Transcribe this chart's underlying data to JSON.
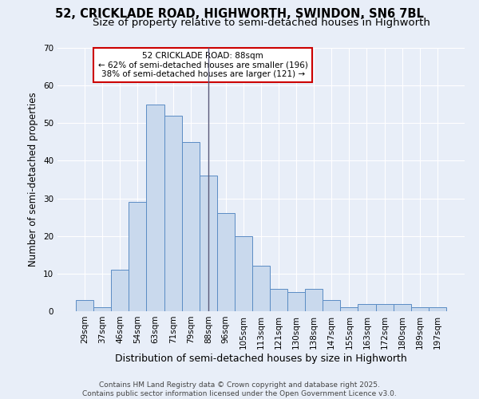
{
  "title": "52, CRICKLADE ROAD, HIGHWORTH, SWINDON, SN6 7BL",
  "subtitle": "Size of property relative to semi-detached houses in Highworth",
  "xlabel": "Distribution of semi-detached houses by size in Highworth",
  "ylabel": "Number of semi-detached properties",
  "categories": [
    "29sqm",
    "37sqm",
    "46sqm",
    "54sqm",
    "63sqm",
    "71sqm",
    "79sqm",
    "88sqm",
    "96sqm",
    "105sqm",
    "113sqm",
    "121sqm",
    "130sqm",
    "138sqm",
    "147sqm",
    "155sqm",
    "163sqm",
    "172sqm",
    "180sqm",
    "189sqm",
    "197sqm"
  ],
  "values": [
    3,
    1,
    11,
    29,
    55,
    52,
    45,
    36,
    26,
    20,
    12,
    6,
    5,
    6,
    3,
    1,
    2,
    2,
    2,
    1,
    1
  ],
  "bar_color": "#c9d9ed",
  "bar_edge_color": "#5b8cc4",
  "marker_index": 7,
  "marker_label": "52 CRICKLADE ROAD: 88sqm",
  "marker_line_color": "#5a5a7a",
  "annotation_lines": [
    "← 62% of semi-detached houses are smaller (196)",
    "38% of semi-detached houses are larger (121) →"
  ],
  "annotation_box_edge_color": "#cc0000",
  "ylim": [
    0,
    70
  ],
  "yticks": [
    0,
    10,
    20,
    30,
    40,
    50,
    60,
    70
  ],
  "background_color": "#e8eef8",
  "plot_bg_color": "#e8eef8",
  "grid_color": "#ffffff",
  "footer_lines": [
    "Contains HM Land Registry data © Crown copyright and database right 2025.",
    "Contains public sector information licensed under the Open Government Licence v3.0."
  ],
  "title_fontsize": 10.5,
  "subtitle_fontsize": 9.5,
  "xlabel_fontsize": 9,
  "ylabel_fontsize": 8.5,
  "tick_fontsize": 7.5,
  "footer_fontsize": 6.5,
  "annotation_fontsize": 7.5
}
